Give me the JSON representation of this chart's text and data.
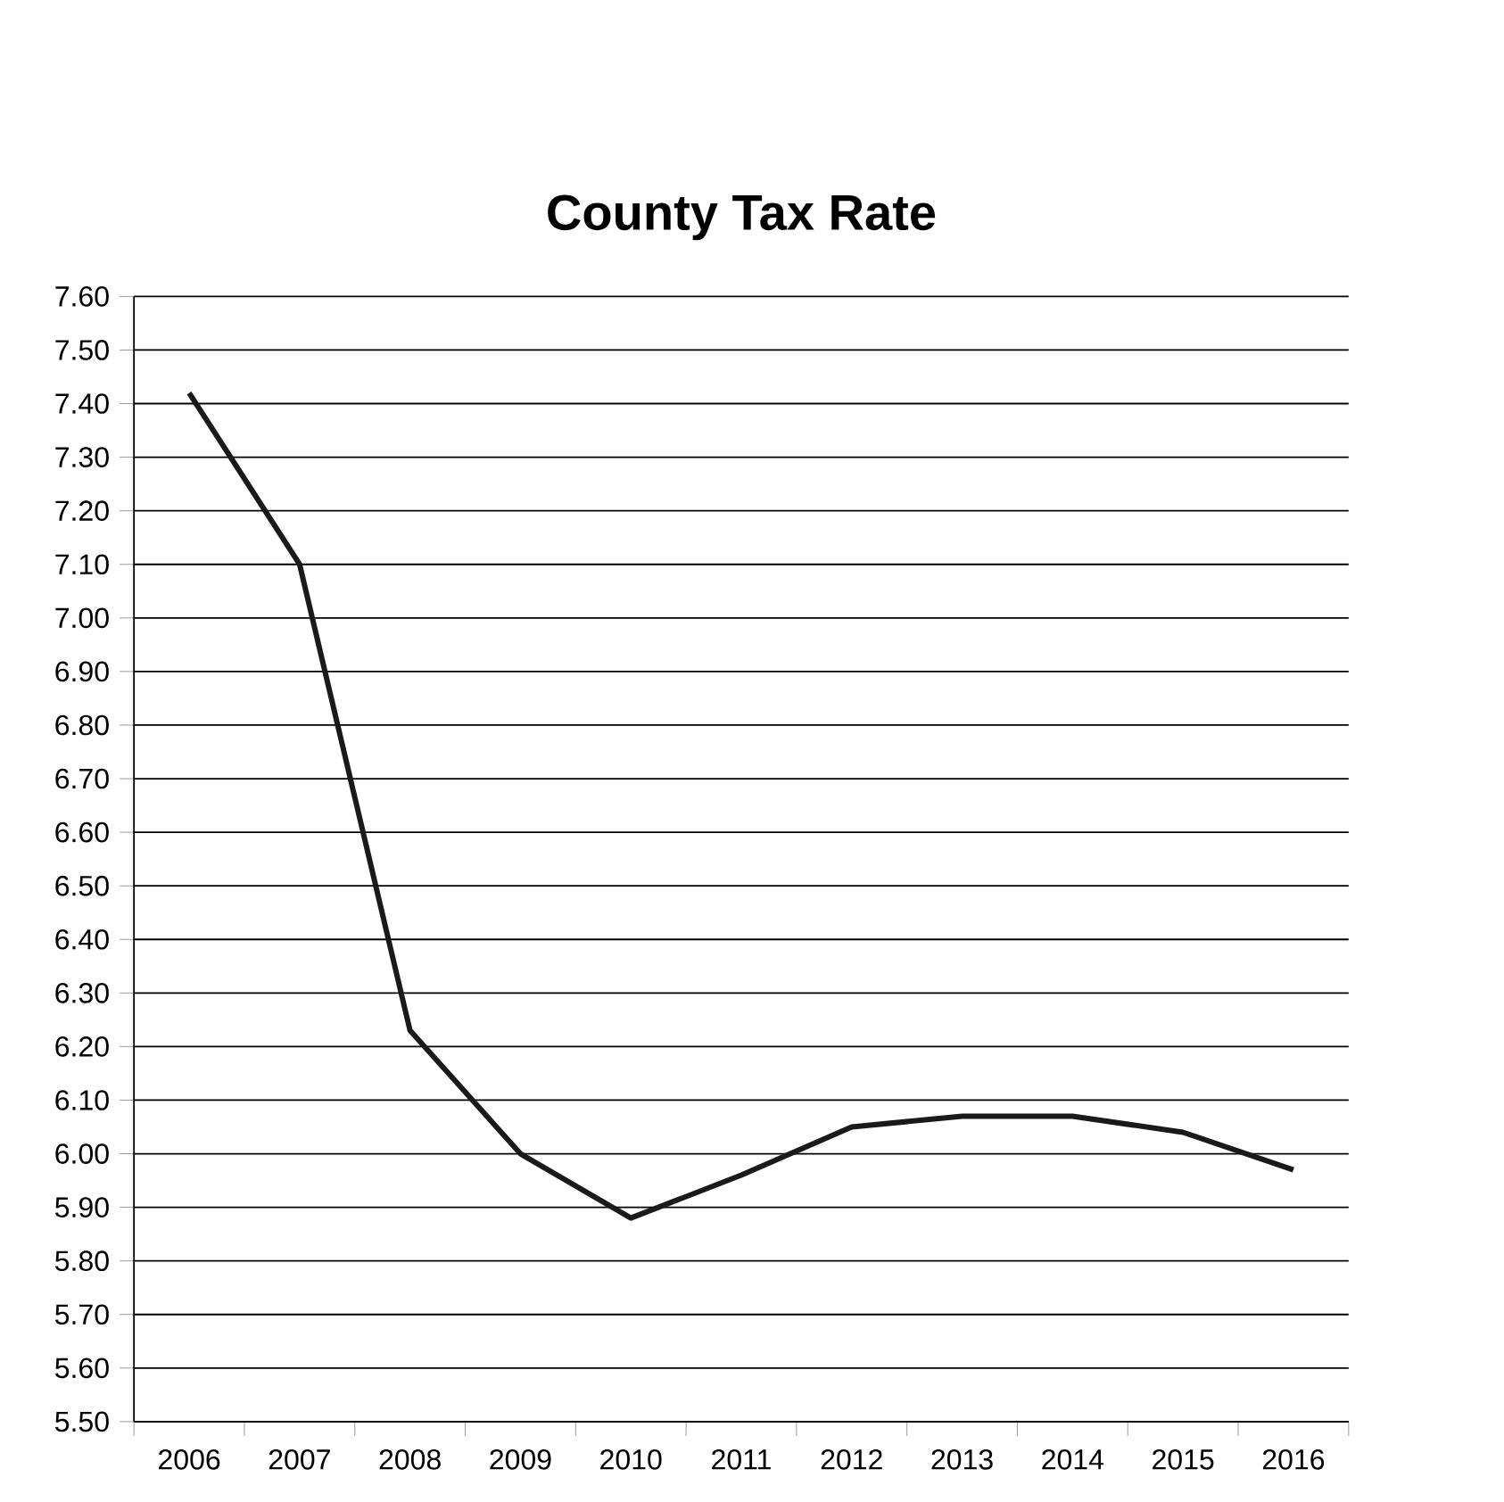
{
  "chart_data": {
    "type": "line",
    "title": "County Tax Rate",
    "categories": [
      "2006",
      "2007",
      "2008",
      "2009",
      "2010",
      "2011",
      "2012",
      "2013",
      "2014",
      "2015",
      "2016"
    ],
    "series": [
      {
        "color": "#1a1a1a",
        "values": [
          7.42,
          7.1,
          6.23,
          6.0,
          5.88,
          5.96,
          6.05,
          6.07,
          6.07,
          6.04,
          5.97
        ]
      }
    ],
    "ylim": [
      5.5,
      7.6
    ],
    "yticks": [
      {
        "value": 5.5,
        "label": "5.50"
      },
      {
        "value": 5.6,
        "label": "5.60"
      },
      {
        "value": 5.7,
        "label": "5.70"
      },
      {
        "value": 5.8,
        "label": "5.80"
      },
      {
        "value": 5.9,
        "label": "5.90"
      },
      {
        "value": 6.0,
        "label": "6.00"
      },
      {
        "value": 6.1,
        "label": "6.10"
      },
      {
        "value": 6.2,
        "label": "6.20"
      },
      {
        "value": 6.3,
        "label": "6.30"
      },
      {
        "value": 6.4,
        "label": "6.40"
      },
      {
        "value": 6.5,
        "label": "6.50"
      },
      {
        "value": 6.6,
        "label": "6.60"
      },
      {
        "value": 6.7,
        "label": "6.70"
      },
      {
        "value": 6.8,
        "label": "6.80"
      },
      {
        "value": 6.9,
        "label": "6.90"
      },
      {
        "value": 7.0,
        "label": "7.00"
      },
      {
        "value": 7.1,
        "label": "7.10"
      },
      {
        "value": 7.2,
        "label": "7.20"
      },
      {
        "value": 7.3,
        "label": "7.30"
      },
      {
        "value": 7.4,
        "label": "7.40"
      },
      {
        "value": 7.5,
        "label": "7.50"
      },
      {
        "value": 7.6,
        "label": "7.60"
      }
    ],
    "grid": "y",
    "marker": "none",
    "line_style": "solid"
  }
}
